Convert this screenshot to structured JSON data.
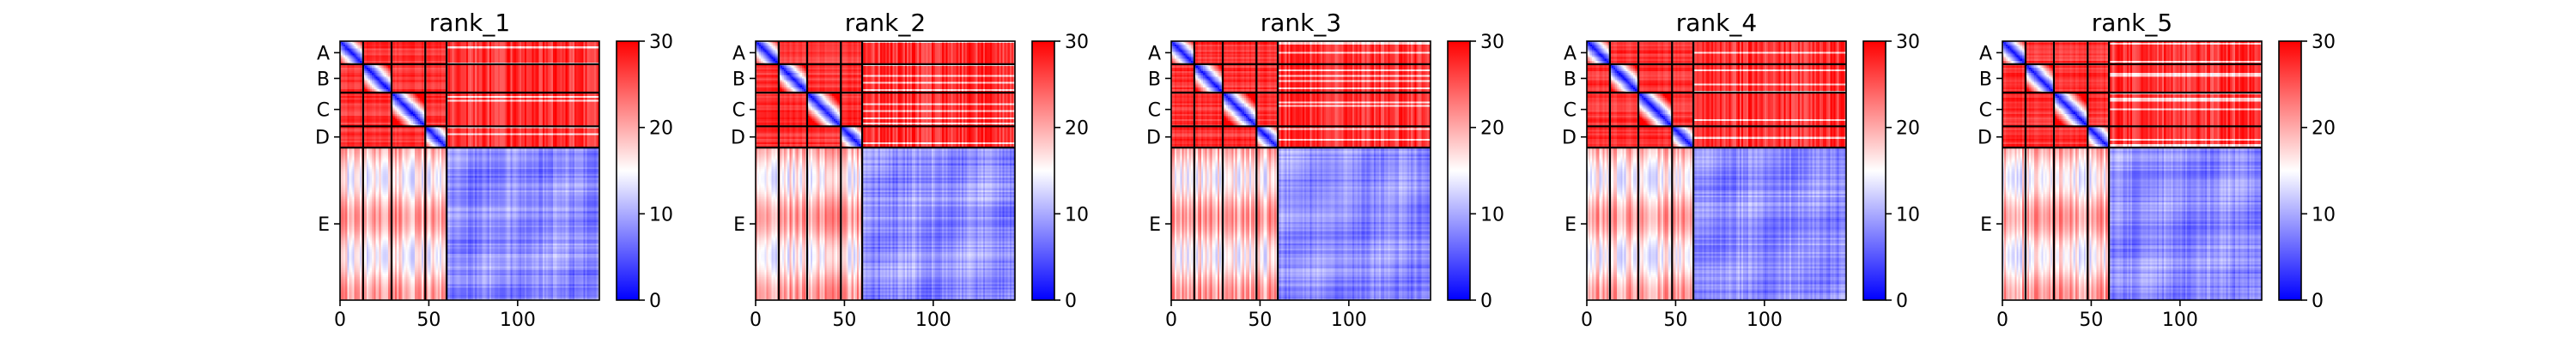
{
  "chart_data": {
    "type": "heatmap",
    "colormap": {
      "name": "bwr",
      "colors": [
        "#0000ff",
        "#ffffff",
        "#ff0000"
      ],
      "vmin": 0,
      "vmax": 30,
      "ticks": [
        0,
        10,
        20,
        30
      ]
    },
    "xlim": [
      0,
      146
    ],
    "xticks": [
      0,
      50,
      100
    ],
    "chains": [
      {
        "label": "A",
        "start": 0,
        "end": 13
      },
      {
        "label": "B",
        "start": 13,
        "end": 29
      },
      {
        "label": "C",
        "start": 29,
        "end": 48
      },
      {
        "label": "D",
        "start": 48,
        "end": 60
      },
      {
        "label": "E",
        "start": 60,
        "end": 146
      }
    ],
    "panels": [
      {
        "title": "rank_1"
      },
      {
        "title": "rank_2"
      },
      {
        "title": "rank_3"
      },
      {
        "title": "rank_4"
      },
      {
        "title": "rank_5"
      }
    ]
  }
}
